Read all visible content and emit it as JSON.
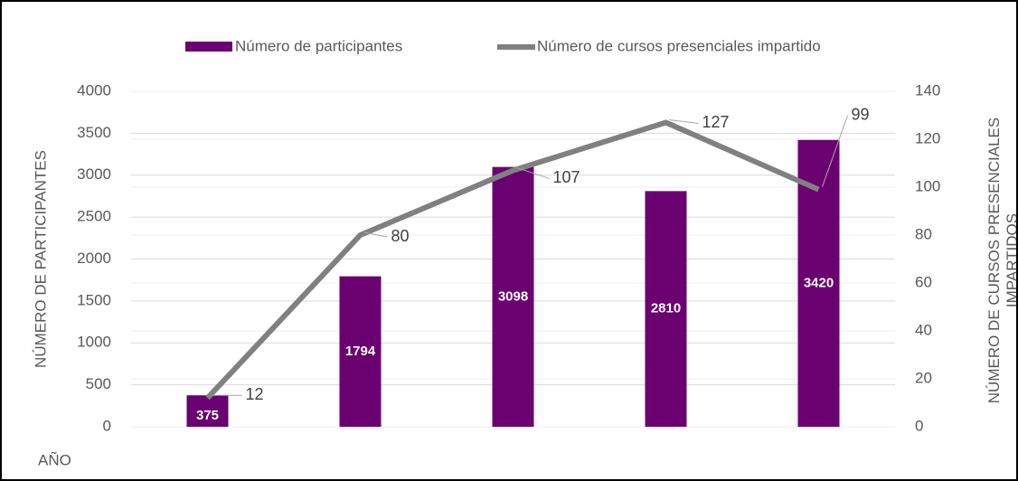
{
  "chart_data": {
    "type": "bar-line",
    "x_label": "AÑO",
    "y_label": "NÚMERO DE PARTICIPANTES",
    "y2_label": "NÚMERO DE CURSOS PRESENCIALES IMPARTIDOS",
    "categories": [
      null,
      null,
      null,
      null,
      null
    ],
    "series": [
      {
        "name": "Número de participantes",
        "type": "bar",
        "color": "#6b0070",
        "values": [
          375,
          1794,
          3098,
          2810,
          3420
        ]
      },
      {
        "name": "Número de cursos presenciales impartido",
        "type": "line",
        "axis": "y2",
        "color": "#808080",
        "values": [
          12,
          80,
          107,
          127,
          99
        ]
      }
    ],
    "ylim": [
      0,
      4000
    ],
    "yticks": [
      0,
      500,
      1000,
      1500,
      2000,
      2500,
      3000,
      3500,
      4000
    ],
    "y2lim": [
      0,
      140
    ],
    "y2ticks": [
      0,
      20,
      40,
      60,
      80,
      100,
      120,
      140
    ],
    "grid": true,
    "legend": "top"
  }
}
